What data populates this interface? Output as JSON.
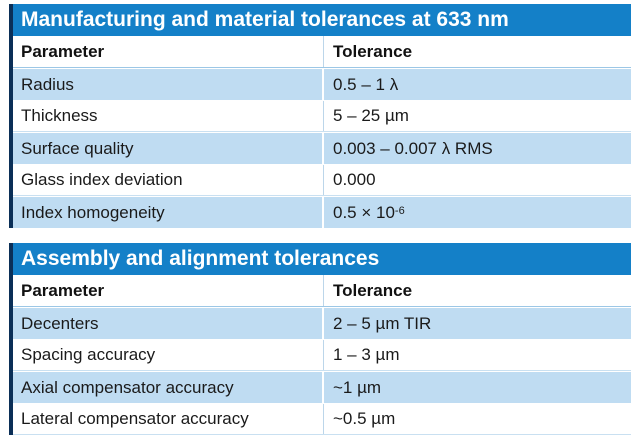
{
  "table1": {
    "title": "Manufacturing and material tolerances at 633 nm",
    "header": {
      "parameter": "Parameter",
      "tolerance": "Tolerance"
    },
    "rows": [
      {
        "parameter": "Radius",
        "tolerance": "0.5 – 1 λ"
      },
      {
        "parameter": "Thickness",
        "tolerance": "5 – 25 µm"
      },
      {
        "parameter": "Surface quality",
        "tolerance": "0.003 – 0.007 λ RMS"
      },
      {
        "parameter": "Glass index deviation",
        "tolerance": "0.000"
      },
      {
        "parameter": "Index homogeneity",
        "tolerance_base": "0.5 × 10",
        "tolerance_exp": "-6"
      }
    ]
  },
  "table2": {
    "title": "Assembly and alignment tolerances",
    "header": {
      "parameter": "Parameter",
      "tolerance": "Tolerance"
    },
    "rows": [
      {
        "parameter": "Decenters",
        "tolerance": "2 – 5 µm TIR"
      },
      {
        "parameter": "Spacing accuracy",
        "tolerance": "1 – 3 µm"
      },
      {
        "parameter": "Axial compensator accuracy",
        "tolerance": "~1 µm"
      },
      {
        "parameter": "Lateral compensator accuracy",
        "tolerance": "~0.5 µm"
      }
    ]
  }
}
